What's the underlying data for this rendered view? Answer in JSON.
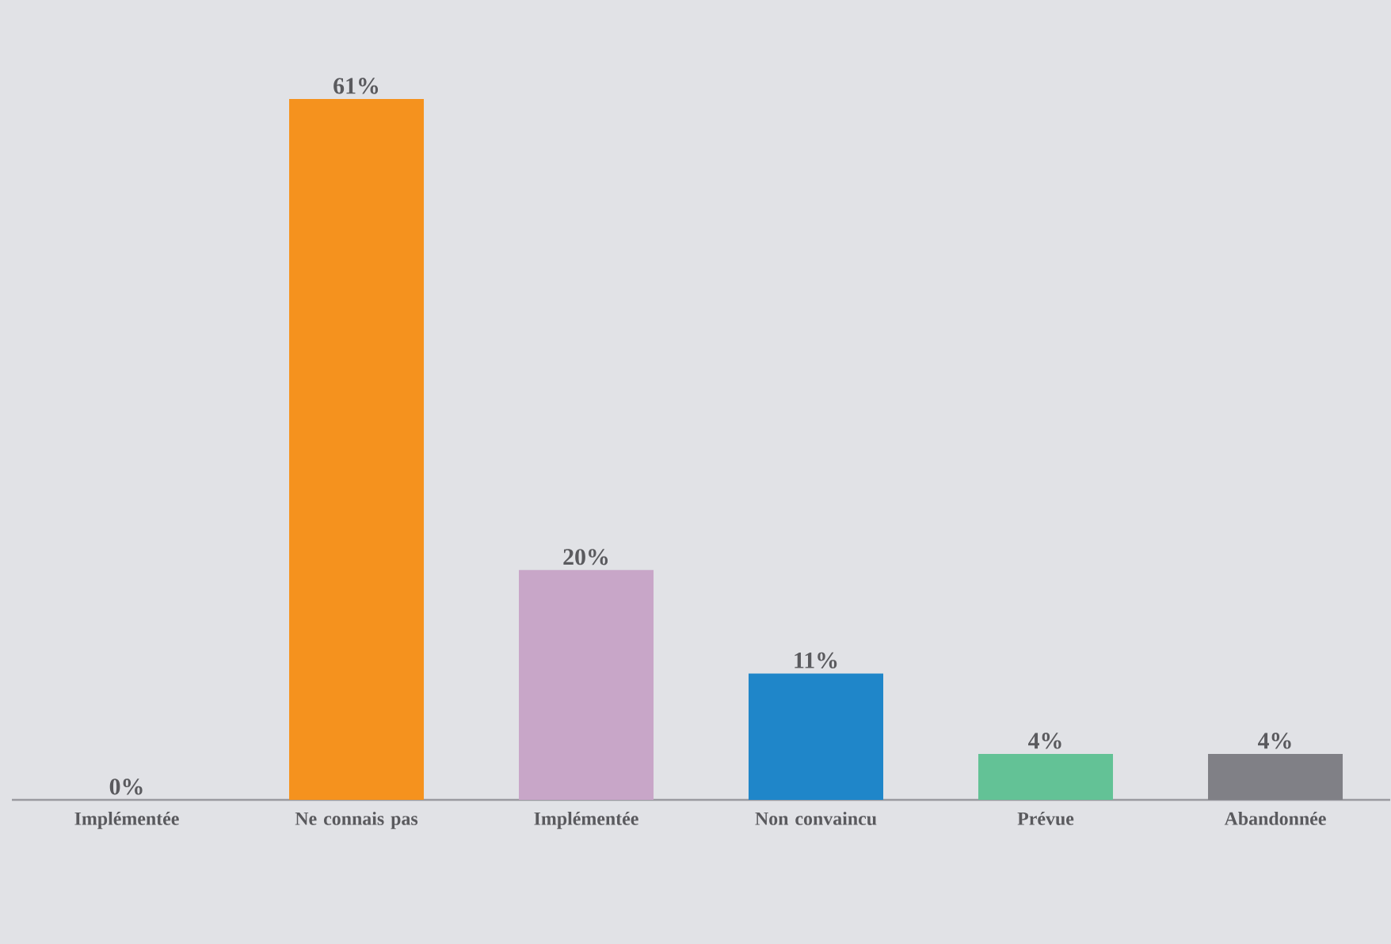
{
  "chart_data": {
    "type": "bar",
    "categories": [
      "Implémentée",
      "Ne connais pas",
      "Implémentée",
      "Non convaincu",
      "Prévue",
      "Abandonnée"
    ],
    "values": [
      0,
      61,
      20,
      11,
      4,
      4
    ],
    "value_labels": [
      "0%",
      "61%",
      "20%",
      "11%",
      "4%",
      "4%"
    ],
    "colors": [
      "#f5921e",
      "#f5921e",
      "#c8a6c8",
      "#1f86c9",
      "#63c296",
      "#808086"
    ]
  }
}
